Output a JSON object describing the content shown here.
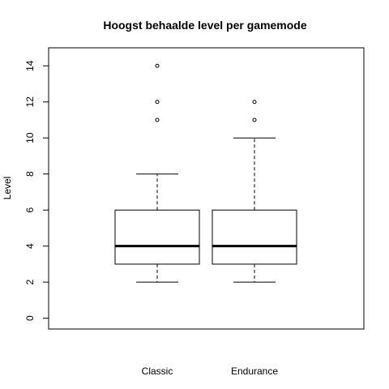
{
  "chart_data": {
    "type": "box",
    "title": "Hoogst behaalde level per gamemode",
    "xlabel": "",
    "ylabel": "Level",
    "ylim": [
      -0.6,
      15
    ],
    "yticks": [
      0,
      2,
      4,
      6,
      8,
      10,
      12,
      14
    ],
    "grid": false,
    "categories": [
      "Classic",
      "Endurance"
    ],
    "boxes": [
      {
        "category": "Classic",
        "whisker_low": 2,
        "q1": 3,
        "median": 4,
        "q3": 6,
        "whisker_high": 8,
        "outliers": [
          11,
          12,
          14
        ]
      },
      {
        "category": "Endurance",
        "whisker_low": 2,
        "q1": 3,
        "median": 4,
        "q3": 6,
        "whisker_high": 10,
        "outliers": [
          11,
          12
        ]
      }
    ]
  }
}
